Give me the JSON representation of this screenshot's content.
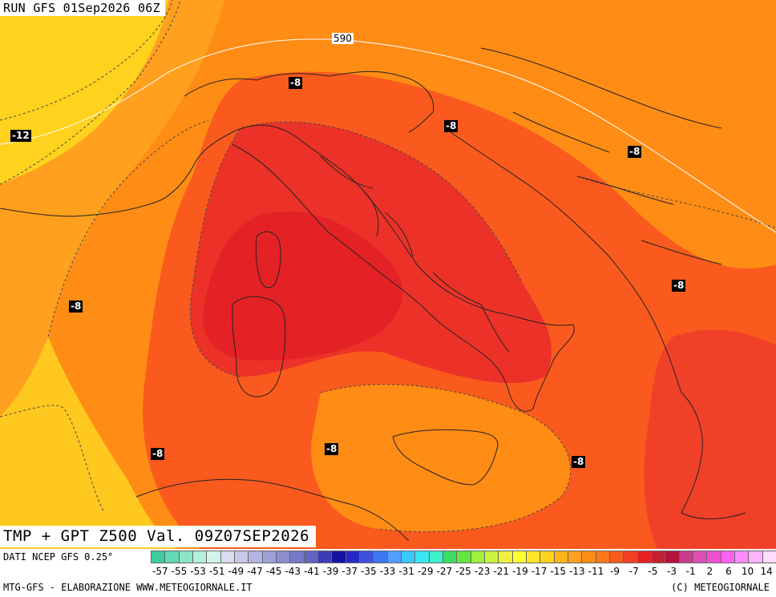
{
  "header": {
    "run": "RUN GFS 01Sep2026 06Z"
  },
  "map": {
    "title": "TMP + GPT Z500 Val. 09Z07SEP2026",
    "gpt_label": "590",
    "isotherm_labels": [
      "-12",
      "-8",
      "-8",
      "-8",
      "-8",
      "-8",
      "-8",
      "-8",
      "-8",
      "-8"
    ]
  },
  "footer": {
    "source": "DATI NCEP GFS 0.25°",
    "credit_left": "MTG-GFS - ELABORAZIONE WWW.METEOGIORNALE.IT",
    "credit_right": "(C) METEOGIORNALE"
  },
  "colors": {
    "cold_yellow": "#ffd21e",
    "yellow_orange": "#ffb41e",
    "orange": "#ff8c14",
    "red_orange": "#fa5a1e",
    "red": "#ec3228",
    "deep_red": "#e42226"
  },
  "colorbar": {
    "colors": [
      "#3ccca0",
      "#64d8b4",
      "#8ce4c8",
      "#b4f0dc",
      "#d2f5eb",
      "#dcdcf0",
      "#c8c8e8",
      "#b4b4e0",
      "#a0a0d8",
      "#8c8cd0",
      "#7878c8",
      "#6464c0",
      "#3c3cb4",
      "#1414a0",
      "#2828c8",
      "#3c50dc",
      "#3c78f0",
      "#50a0ff",
      "#3cc8ff",
      "#3ce6f0",
      "#3cf0c8",
      "#3cdc64",
      "#64e63c",
      "#a0f03c",
      "#c8f53c",
      "#f0f03c",
      "#ffff32",
      "#ffe628",
      "#ffd21e",
      "#ffb41e",
      "#ffa01e",
      "#ff8c14",
      "#ff781e",
      "#fa5a1e",
      "#f04128",
      "#e42226",
      "#c81e32",
      "#b4143c",
      "#c83c8c",
      "#dc50b4",
      "#f050d2",
      "#ff64f0",
      "#ff8cff",
      "#ffb4ff",
      "#ffdcff"
    ],
    "ticks": [
      "-57",
      "-55",
      "-53",
      "-51",
      "-49",
      "-47",
      "-45",
      "-43",
      "-41",
      "-39",
      "-37",
      "-35",
      "-33",
      "-31",
      "-29",
      "-27",
      "-25",
      "-23",
      "-21",
      "-19",
      "-17",
      "-15",
      "-13",
      "-11",
      "-9",
      "-7",
      "-5",
      "-3",
      "-1",
      "2",
      "6",
      "10",
      "14"
    ]
  }
}
